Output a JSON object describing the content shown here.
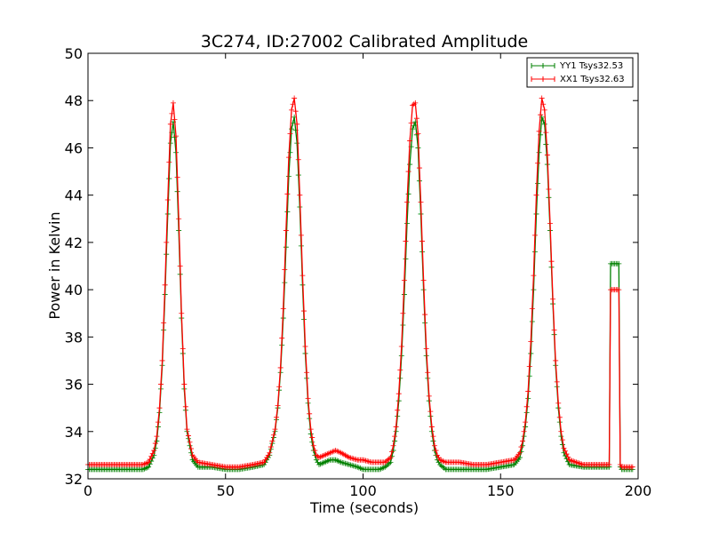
{
  "chart_data": {
    "type": "line",
    "title": "3C274, ID:27002 Calibrated Amplitude",
    "xlabel": "Time (seconds)",
    "ylabel": "Power in Kelvin",
    "xlim": [
      0,
      200
    ],
    "ylim": [
      32,
      50
    ],
    "xticks": [
      0,
      50,
      100,
      150,
      200
    ],
    "yticks": [
      32,
      34,
      36,
      38,
      40,
      42,
      44,
      46,
      48,
      50
    ],
    "grid": false,
    "legend_position": "top-right",
    "marker": "+",
    "series": [
      {
        "name": "YY1 Tsys32.53",
        "color": "#008000",
        "x": [
          0,
          5,
          10,
          15,
          20,
          22,
          24,
          25,
          26,
          27,
          28,
          29,
          30,
          31,
          32,
          33,
          34,
          35,
          36,
          38,
          40,
          45,
          50,
          55,
          60,
          64,
          66,
          68,
          69,
          70,
          71,
          72,
          73,
          74,
          75,
          76,
          77,
          78,
          79,
          80,
          81,
          82,
          83,
          84,
          86,
          88,
          90,
          92,
          95,
          98,
          100,
          103,
          106,
          108,
          110,
          111,
          112,
          113,
          114,
          115,
          116,
          117,
          118,
          119,
          120,
          121,
          122,
          123,
          124,
          125,
          126,
          127,
          128,
          130,
          135,
          140,
          145,
          150,
          155,
          157,
          158,
          159,
          160,
          161,
          162,
          163,
          164,
          165,
          166,
          167,
          168,
          169,
          170,
          171,
          172,
          173,
          175,
          180,
          185,
          188,
          189.5,
          190,
          192,
          193,
          193.5,
          194,
          196,
          198
        ],
        "y": [
          32.4,
          32.4,
          32.4,
          32.4,
          32.4,
          32.5,
          33.0,
          33.6,
          34.8,
          36.8,
          39.8,
          43.2,
          46.2,
          47.1,
          45.8,
          42.5,
          38.8,
          35.8,
          34.0,
          32.8,
          32.5,
          32.5,
          32.4,
          32.4,
          32.5,
          32.6,
          33.0,
          34.0,
          35.0,
          36.5,
          38.8,
          41.8,
          44.8,
          46.8,
          47.3,
          46.2,
          43.5,
          40.2,
          37.3,
          35.2,
          33.9,
          33.2,
          32.8,
          32.6,
          32.7,
          32.8,
          32.8,
          32.7,
          32.6,
          32.5,
          32.4,
          32.4,
          32.4,
          32.5,
          32.7,
          33.2,
          34.0,
          35.3,
          37.2,
          39.8,
          42.8,
          45.3,
          46.8,
          47.1,
          46.0,
          43.2,
          40.0,
          37.2,
          35.3,
          34.0,
          33.2,
          32.8,
          32.6,
          32.4,
          32.4,
          32.4,
          32.4,
          32.5,
          32.6,
          32.9,
          33.4,
          34.2,
          35.4,
          37.3,
          40.0,
          43.2,
          45.8,
          47.3,
          47.0,
          45.3,
          42.5,
          39.4,
          36.8,
          35.0,
          33.8,
          33.1,
          32.6,
          32.5,
          32.5,
          32.5,
          32.5,
          41.1,
          41.1,
          41.1,
          32.5,
          32.4,
          32.4,
          32.4
        ]
      },
      {
        "name": "XX1 Tsys32.63",
        "color": "#ff0000",
        "x": [
          0,
          5,
          10,
          15,
          20,
          22,
          24,
          25,
          26,
          27,
          28,
          29,
          30,
          31,
          32,
          33,
          34,
          35,
          36,
          38,
          40,
          45,
          50,
          55,
          60,
          64,
          66,
          68,
          69,
          70,
          71,
          72,
          73,
          74,
          75,
          76,
          77,
          78,
          79,
          80,
          81,
          82,
          83,
          84,
          86,
          88,
          90,
          92,
          95,
          98,
          100,
          103,
          106,
          108,
          110,
          111,
          112,
          113,
          114,
          115,
          116,
          117,
          118,
          119,
          120,
          121,
          122,
          123,
          124,
          125,
          126,
          127,
          128,
          130,
          135,
          140,
          145,
          150,
          155,
          157,
          158,
          159,
          160,
          161,
          162,
          163,
          164,
          165,
          166,
          167,
          168,
          169,
          170,
          171,
          172,
          173,
          175,
          180,
          185,
          188,
          189.5,
          190,
          192,
          193,
          193.5,
          194,
          196,
          198
        ],
        "y": [
          32.6,
          32.6,
          32.6,
          32.6,
          32.6,
          32.7,
          33.2,
          33.8,
          35.0,
          37.0,
          40.2,
          43.8,
          47.0,
          47.9,
          46.5,
          43.0,
          39.0,
          36.0,
          34.1,
          33.0,
          32.7,
          32.6,
          32.5,
          32.5,
          32.6,
          32.7,
          33.1,
          34.1,
          35.1,
          36.7,
          39.2,
          42.5,
          45.6,
          47.6,
          48.1,
          47.0,
          44.0,
          40.6,
          37.6,
          35.4,
          34.1,
          33.4,
          33.0,
          32.9,
          33.0,
          33.1,
          33.2,
          33.1,
          32.9,
          32.8,
          32.8,
          32.7,
          32.7,
          32.7,
          32.9,
          33.4,
          34.2,
          35.6,
          37.6,
          40.4,
          43.7,
          46.3,
          47.8,
          47.9,
          46.6,
          43.7,
          40.4,
          37.5,
          35.5,
          34.2,
          33.4,
          33.0,
          32.8,
          32.7,
          32.7,
          32.6,
          32.6,
          32.7,
          32.8,
          33.1,
          33.6,
          34.4,
          35.7,
          37.8,
          40.6,
          44.0,
          46.7,
          48.1,
          47.6,
          45.7,
          42.8,
          39.6,
          37.0,
          35.2,
          34.0,
          33.3,
          32.8,
          32.6,
          32.6,
          32.6,
          32.6,
          40.0,
          40.0,
          40.0,
          32.6,
          32.5,
          32.5,
          32.5
        ]
      }
    ]
  }
}
